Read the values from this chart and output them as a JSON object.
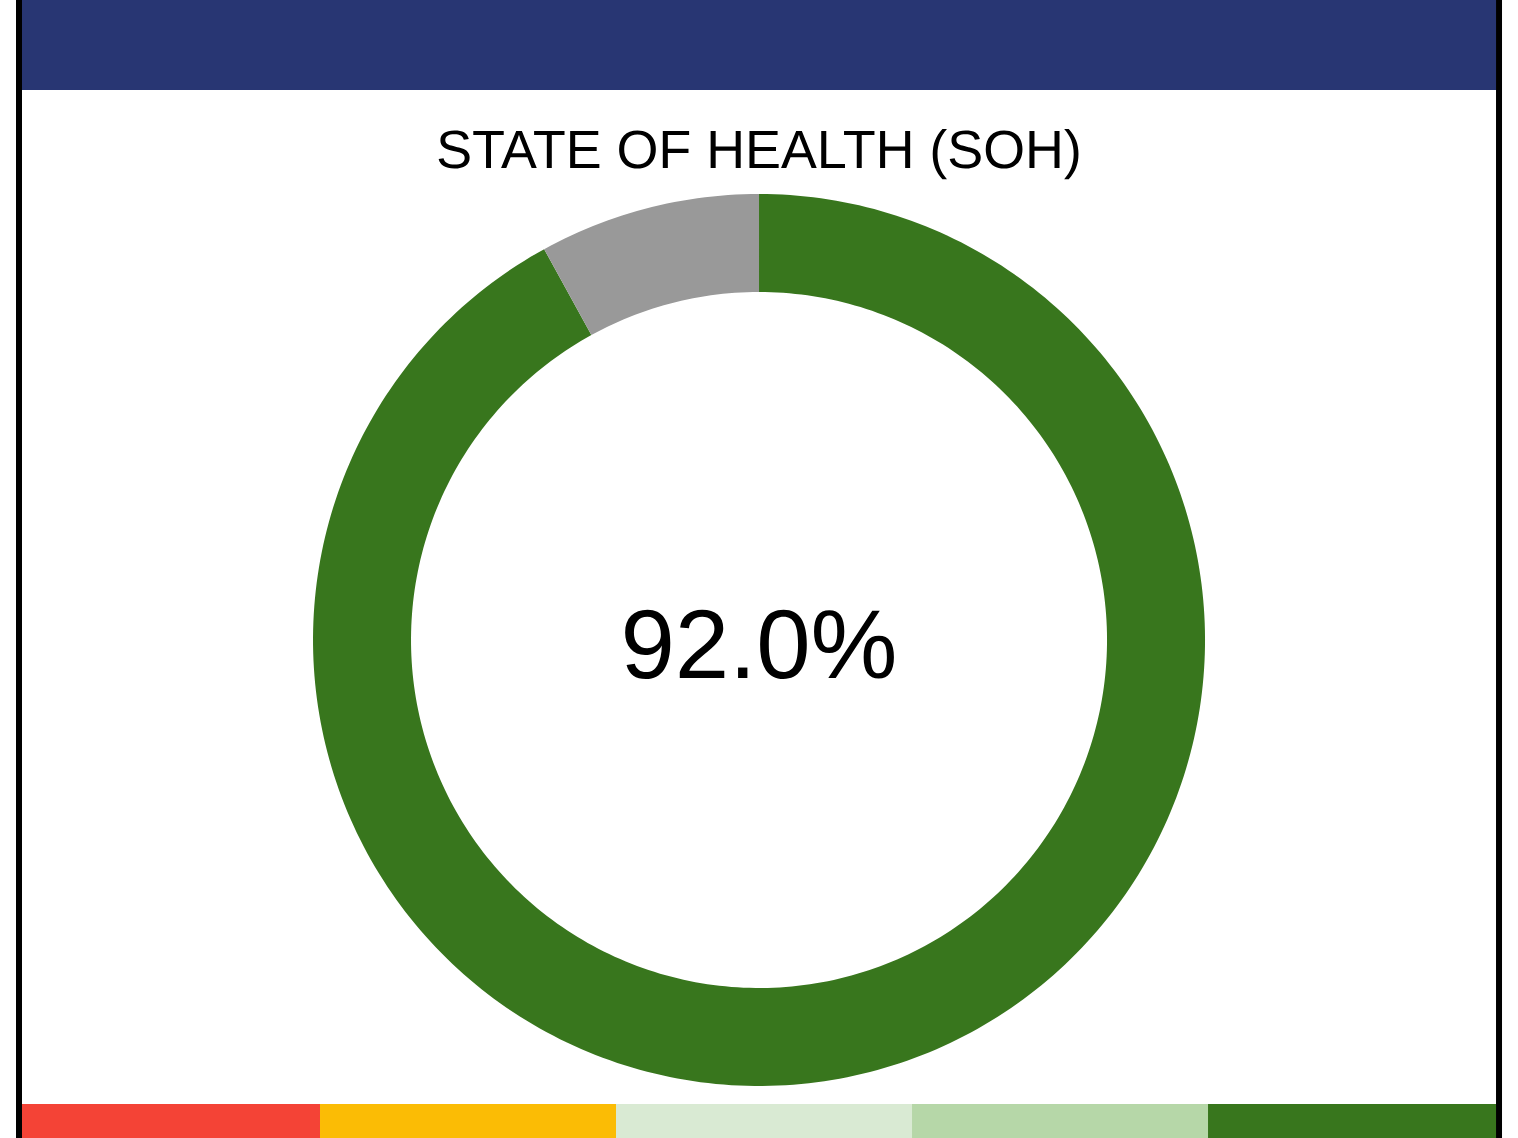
{
  "chart_data": {
    "type": "donut",
    "title": "STATE OF HEALTH (SOH)",
    "categories": [
      null,
      null
    ],
    "values": [
      92,
      8
    ],
    "colors": [
      "#38761d",
      "#999999"
    ],
    "annotations": [
      "92.0%"
    ]
  }
}
